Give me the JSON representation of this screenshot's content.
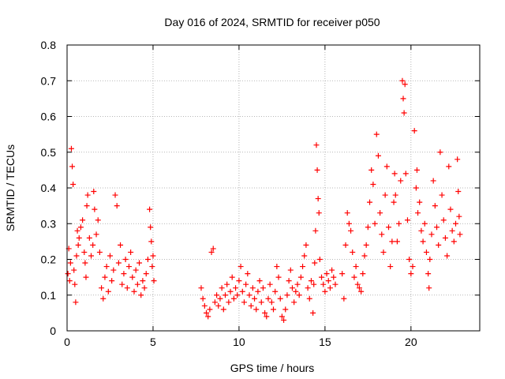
{
  "chart_data": {
    "type": "scatter",
    "title": "Day 016 of 2024, SRMTID for receiver p050",
    "xlabel": "GPS time / hours",
    "ylabel": "SRMTID / TECUs",
    "xlim": [
      0,
      24
    ],
    "ylim": [
      0,
      0.8
    ],
    "xticks": [
      0,
      5,
      10,
      15,
      20
    ],
    "yticks": [
      0,
      0.1,
      0.2,
      0.3,
      0.4,
      0.5,
      0.6,
      0.7,
      0.8
    ],
    "xtick_labels": [
      "0",
      "5",
      "10",
      "15",
      "20"
    ],
    "ytick_labels": [
      "0",
      "0.1",
      "0.2",
      "0.3",
      "0.4",
      "0.5",
      "0.6",
      "0.7",
      "0.8"
    ],
    "grid": true,
    "marker": "+",
    "series": [
      {
        "name": "SRMTID",
        "color": "#ff0000",
        "points": [
          [
            0.05,
            0.16
          ],
          [
            0.1,
            0.23
          ],
          [
            0.15,
            0.14
          ],
          [
            0.2,
            0.19
          ],
          [
            0.25,
            0.51
          ],
          [
            0.3,
            0.46
          ],
          [
            0.35,
            0.41
          ],
          [
            0.4,
            0.17
          ],
          [
            0.45,
            0.13
          ],
          [
            0.5,
            0.08
          ],
          [
            0.55,
            0.21
          ],
          [
            0.6,
            0.28
          ],
          [
            0.65,
            0.24
          ],
          [
            0.7,
            0.26
          ],
          [
            0.8,
            0.29
          ],
          [
            0.9,
            0.31
          ],
          [
            1.0,
            0.22
          ],
          [
            1.05,
            0.19
          ],
          [
            1.1,
            0.15
          ],
          [
            1.15,
            0.35
          ],
          [
            1.2,
            0.38
          ],
          [
            1.3,
            0.26
          ],
          [
            1.4,
            0.21
          ],
          [
            1.5,
            0.24
          ],
          [
            1.55,
            0.39
          ],
          [
            1.6,
            0.34
          ],
          [
            1.7,
            0.27
          ],
          [
            1.8,
            0.31
          ],
          [
            1.9,
            0.22
          ],
          [
            2.0,
            0.12
          ],
          [
            2.1,
            0.09
          ],
          [
            2.2,
            0.15
          ],
          [
            2.3,
            0.18
          ],
          [
            2.4,
            0.11
          ],
          [
            2.5,
            0.21
          ],
          [
            2.6,
            0.14
          ],
          [
            2.7,
            0.17
          ],
          [
            2.8,
            0.38
          ],
          [
            2.9,
            0.35
          ],
          [
            3.0,
            0.19
          ],
          [
            3.1,
            0.24
          ],
          [
            3.2,
            0.13
          ],
          [
            3.3,
            0.16
          ],
          [
            3.4,
            0.2
          ],
          [
            3.5,
            0.12
          ],
          [
            3.6,
            0.18
          ],
          [
            3.7,
            0.22
          ],
          [
            3.8,
            0.15
          ],
          [
            3.9,
            0.11
          ],
          [
            4.0,
            0.17
          ],
          [
            4.1,
            0.13
          ],
          [
            4.2,
            0.19
          ],
          [
            4.3,
            0.1
          ],
          [
            4.4,
            0.14
          ],
          [
            4.5,
            0.12
          ],
          [
            4.6,
            0.16
          ],
          [
            4.7,
            0.2
          ],
          [
            4.8,
            0.34
          ],
          [
            4.85,
            0.29
          ],
          [
            4.9,
            0.25
          ],
          [
            4.95,
            0.18
          ],
          [
            5.0,
            0.21
          ],
          [
            5.05,
            0.14
          ],
          [
            7.8,
            0.12
          ],
          [
            7.9,
            0.09
          ],
          [
            8.0,
            0.07
          ],
          [
            8.1,
            0.05
          ],
          [
            8.2,
            0.04
          ],
          [
            8.3,
            0.06
          ],
          [
            8.4,
            0.22
          ],
          [
            8.5,
            0.23
          ],
          [
            8.6,
            0.08
          ],
          [
            8.7,
            0.1
          ],
          [
            8.8,
            0.07
          ],
          [
            8.9,
            0.09
          ],
          [
            9.0,
            0.12
          ],
          [
            9.1,
            0.06
          ],
          [
            9.2,
            0.1
          ],
          [
            9.3,
            0.13
          ],
          [
            9.4,
            0.08
          ],
          [
            9.5,
            0.11
          ],
          [
            9.6,
            0.15
          ],
          [
            9.7,
            0.09
          ],
          [
            9.8,
            0.12
          ],
          [
            9.9,
            0.1
          ],
          [
            10.0,
            0.14
          ],
          [
            10.1,
            0.18
          ],
          [
            10.2,
            0.11
          ],
          [
            10.3,
            0.08
          ],
          [
            10.4,
            0.13
          ],
          [
            10.5,
            0.16
          ],
          [
            10.6,
            0.1
          ],
          [
            10.7,
            0.07
          ],
          [
            10.8,
            0.12
          ],
          [
            10.9,
            0.09
          ],
          [
            11.0,
            0.06
          ],
          [
            11.1,
            0.11
          ],
          [
            11.2,
            0.14
          ],
          [
            11.3,
            0.08
          ],
          [
            11.4,
            0.12
          ],
          [
            11.5,
            0.05
          ],
          [
            11.6,
            0.04
          ],
          [
            11.7,
            0.09
          ],
          [
            11.8,
            0.13
          ],
          [
            11.9,
            0.08
          ],
          [
            12.0,
            0.06
          ],
          [
            12.1,
            0.11
          ],
          [
            12.2,
            0.18
          ],
          [
            12.3,
            0.15
          ],
          [
            12.4,
            0.09
          ],
          [
            12.5,
            0.04
          ],
          [
            12.6,
            0.03
          ],
          [
            12.7,
            0.06
          ],
          [
            12.8,
            0.1
          ],
          [
            12.9,
            0.14
          ],
          [
            13.0,
            0.17
          ],
          [
            13.1,
            0.12
          ],
          [
            13.2,
            0.08
          ],
          [
            13.3,
            0.11
          ],
          [
            13.4,
            0.13
          ],
          [
            13.5,
            0.1
          ],
          [
            13.6,
            0.15
          ],
          [
            13.7,
            0.18
          ],
          [
            13.8,
            0.21
          ],
          [
            13.9,
            0.24
          ],
          [
            14.0,
            0.12
          ],
          [
            14.1,
            0.09
          ],
          [
            14.2,
            0.14
          ],
          [
            14.3,
            0.05
          ],
          [
            14.35,
            0.13
          ],
          [
            14.4,
            0.19
          ],
          [
            14.45,
            0.28
          ],
          [
            14.5,
            0.52
          ],
          [
            14.55,
            0.45
          ],
          [
            14.6,
            0.37
          ],
          [
            14.65,
            0.33
          ],
          [
            14.7,
            0.2
          ],
          [
            14.8,
            0.15
          ],
          [
            14.9,
            0.13
          ],
          [
            15.0,
            0.11
          ],
          [
            15.1,
            0.16
          ],
          [
            15.2,
            0.14
          ],
          [
            15.3,
            0.12
          ],
          [
            15.4,
            0.17
          ],
          [
            15.5,
            0.15
          ],
          [
            15.6,
            0.13
          ],
          [
            16.0,
            0.16
          ],
          [
            16.1,
            0.09
          ],
          [
            16.2,
            0.24
          ],
          [
            16.3,
            0.33
          ],
          [
            16.4,
            0.3
          ],
          [
            16.5,
            0.28
          ],
          [
            16.6,
            0.22
          ],
          [
            16.7,
            0.15
          ],
          [
            16.8,
            0.18
          ],
          [
            16.9,
            0.13
          ],
          [
            17.0,
            0.12
          ],
          [
            17.1,
            0.11
          ],
          [
            17.2,
            0.16
          ],
          [
            17.3,
            0.21
          ],
          [
            17.4,
            0.24
          ],
          [
            17.5,
            0.29
          ],
          [
            17.6,
            0.36
          ],
          [
            17.7,
            0.45
          ],
          [
            17.8,
            0.41
          ],
          [
            17.9,
            0.3
          ],
          [
            18.0,
            0.55
          ],
          [
            18.1,
            0.49
          ],
          [
            18.2,
            0.33
          ],
          [
            18.3,
            0.27
          ],
          [
            18.4,
            0.22
          ],
          [
            18.5,
            0.38
          ],
          [
            18.6,
            0.46
          ],
          [
            18.7,
            0.29
          ],
          [
            18.8,
            0.18
          ],
          [
            18.9,
            0.25
          ],
          [
            19.0,
            0.36
          ],
          [
            19.05,
            0.44
          ],
          [
            19.1,
            0.38
          ],
          [
            19.2,
            0.25
          ],
          [
            19.3,
            0.3
          ],
          [
            19.4,
            0.42
          ],
          [
            19.5,
            0.7
          ],
          [
            19.55,
            0.65
          ],
          [
            19.6,
            0.61
          ],
          [
            19.65,
            0.69
          ],
          [
            19.7,
            0.44
          ],
          [
            19.8,
            0.31
          ],
          [
            19.9,
            0.2
          ],
          [
            20.0,
            0.16
          ],
          [
            20.1,
            0.18
          ],
          [
            20.2,
            0.56
          ],
          [
            20.3,
            0.4
          ],
          [
            20.35,
            0.45
          ],
          [
            20.4,
            0.33
          ],
          [
            20.5,
            0.36
          ],
          [
            20.6,
            0.28
          ],
          [
            20.7,
            0.25
          ],
          [
            20.8,
            0.3
          ],
          [
            20.9,
            0.22
          ],
          [
            21.0,
            0.16
          ],
          [
            21.05,
            0.12
          ],
          [
            21.1,
            0.2
          ],
          [
            21.2,
            0.27
          ],
          [
            21.3,
            0.42
          ],
          [
            21.4,
            0.35
          ],
          [
            21.5,
            0.29
          ],
          [
            21.6,
            0.24
          ],
          [
            21.7,
            0.5
          ],
          [
            21.8,
            0.38
          ],
          [
            21.9,
            0.31
          ],
          [
            22.0,
            0.26
          ],
          [
            22.1,
            0.21
          ],
          [
            22.2,
            0.46
          ],
          [
            22.3,
            0.34
          ],
          [
            22.4,
            0.28
          ],
          [
            22.5,
            0.25
          ],
          [
            22.6,
            0.3
          ],
          [
            22.7,
            0.48
          ],
          [
            22.75,
            0.39
          ],
          [
            22.8,
            0.32
          ],
          [
            22.85,
            0.27
          ]
        ]
      }
    ]
  }
}
